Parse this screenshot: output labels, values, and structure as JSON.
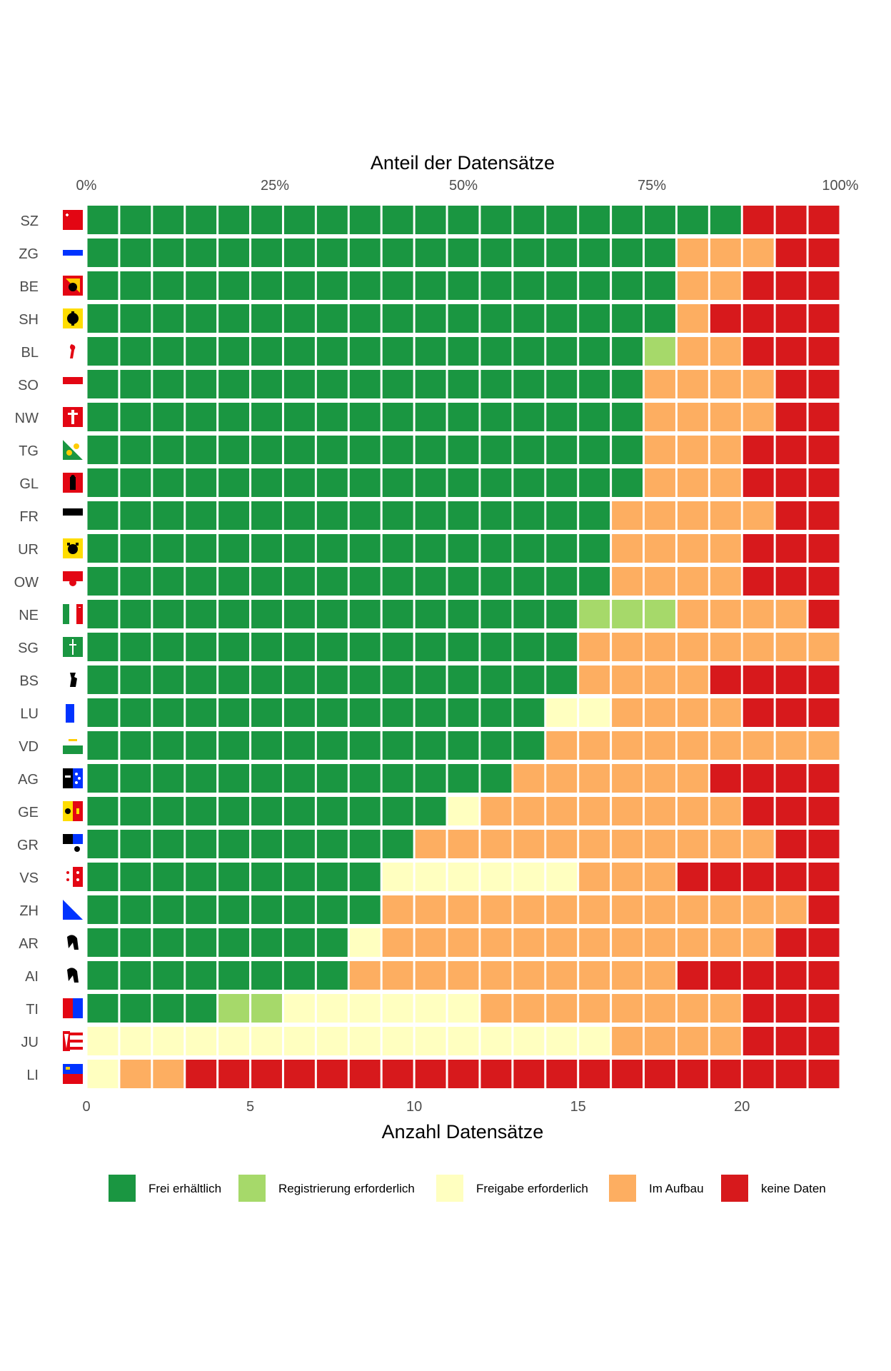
{
  "chart_data": {
    "type": "bar",
    "orientation": "horizontal",
    "stacked": true,
    "title": "",
    "x_top_label": "Anteil der Datensätze",
    "x_top_ticks": [
      "0%",
      "25%",
      "50%",
      "75%",
      "100%"
    ],
    "x_top_tick_values": [
      0,
      0.25,
      0.5,
      0.75,
      1.0
    ],
    "xlabel": "Anzahl Datensätze",
    "x_ticks": [
      "0",
      "5",
      "10",
      "15",
      "20"
    ],
    "x_tick_values": [
      0,
      5,
      10,
      15,
      20
    ],
    "xlim": [
      0,
      23
    ],
    "total": 23,
    "grid": false,
    "legend_position": "bottom",
    "categories": [
      "SZ",
      "ZG",
      "BE",
      "SH",
      "BL",
      "SO",
      "NW",
      "TG",
      "GL",
      "FR",
      "UR",
      "OW",
      "NE",
      "SG",
      "BS",
      "LU",
      "VD",
      "AG",
      "GE",
      "GR",
      "VS",
      "ZH",
      "AR",
      "AI",
      "TI",
      "JU",
      "LI"
    ],
    "flag_icons": [
      "flag-sz",
      "flag-zg",
      "flag-be",
      "flag-sh",
      "flag-bl",
      "flag-so",
      "flag-nw",
      "flag-tg",
      "flag-gl",
      "flag-fr",
      "flag-ur",
      "flag-ow",
      "flag-ne",
      "flag-sg",
      "flag-bs",
      "flag-lu",
      "flag-vd",
      "flag-ag",
      "flag-ge",
      "flag-gr",
      "flag-vs",
      "flag-zh",
      "flag-ar",
      "flag-ai",
      "flag-ti",
      "flag-ju",
      "flag-li"
    ],
    "series": [
      {
        "name": "Frei erhältlich",
        "color": "#1a9641",
        "values": [
          20,
          18,
          18,
          18,
          17,
          17,
          17,
          17,
          17,
          16,
          16,
          16,
          15,
          15,
          15,
          14,
          14,
          13,
          11,
          10,
          9,
          9,
          8,
          8,
          4,
          0,
          0
        ]
      },
      {
        "name": "Registrierung erforderlich",
        "color": "#a6d96a",
        "values": [
          0,
          0,
          0,
          0,
          1,
          0,
          0,
          0,
          0,
          0,
          0,
          0,
          3,
          0,
          0,
          0,
          0,
          0,
          0,
          0,
          0,
          0,
          0,
          0,
          2,
          0,
          0
        ]
      },
      {
        "name": "Freigabe erforderlich",
        "color": "#ffffc0",
        "values": [
          0,
          0,
          0,
          0,
          0,
          0,
          0,
          0,
          0,
          0,
          0,
          0,
          0,
          0,
          0,
          2,
          0,
          0,
          1,
          0,
          6,
          0,
          1,
          0,
          6,
          16,
          1
        ]
      },
      {
        "name": "Im Aufbau",
        "color": "#fdae61",
        "values": [
          0,
          3,
          2,
          1,
          2,
          4,
          4,
          3,
          3,
          5,
          4,
          4,
          4,
          8,
          4,
          4,
          9,
          6,
          8,
          11,
          3,
          13,
          12,
          10,
          8,
          4,
          2
        ]
      },
      {
        "name": "keine Daten",
        "color": "#d7191c",
        "values": [
          3,
          2,
          3,
          4,
          3,
          2,
          2,
          3,
          3,
          2,
          3,
          3,
          1,
          0,
          4,
          3,
          0,
          4,
          3,
          2,
          5,
          1,
          2,
          5,
          3,
          3,
          20
        ]
      }
    ]
  }
}
